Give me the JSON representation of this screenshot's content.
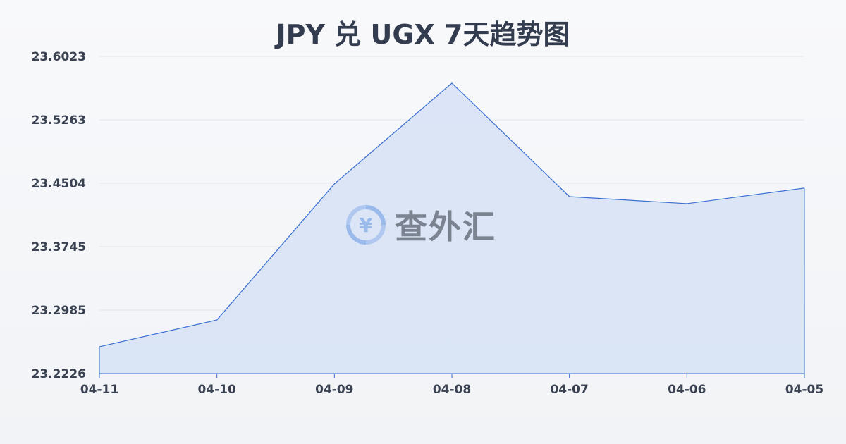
{
  "chart_data": {
    "type": "area",
    "title": "JPY 兑 UGX 7天趋势图",
    "categories": [
      "04-11",
      "04-10",
      "04-09",
      "04-08",
      "04-07",
      "04-06",
      "04-05"
    ],
    "values": [
      23.2547,
      23.2867,
      23.4496,
      23.5703,
      23.4344,
      23.426,
      23.4446
    ],
    "yticks": [
      "23.2226",
      "23.2985",
      "23.3745",
      "23.4504",
      "23.5263",
      "23.6023"
    ],
    "ylim": [
      23.2226,
      23.6023
    ],
    "grid": true,
    "colors": {
      "line": "#3a6fd1",
      "fill": "#d6e2f6",
      "grid": "#e3e6ea"
    }
  },
  "watermark": {
    "text": "查外汇",
    "icon": "yen-exchange-icon"
  }
}
